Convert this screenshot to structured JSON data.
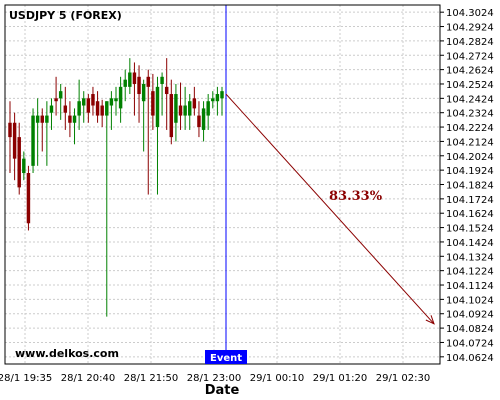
{
  "chart_data": {
    "type": "candlestick",
    "title": "USDJPY 5 (FOREX)",
    "xlabel": "Date",
    "ylabel": "",
    "watermark": "www.delkos.com",
    "ylim": [
      104.0574,
      104.3074
    ],
    "y_ticks": [
      "104.3024",
      "104.2924",
      "104.2824",
      "104.2724",
      "104.2624",
      "104.2524",
      "104.2424",
      "104.2324",
      "104.2224",
      "104.2124",
      "104.2024",
      "104.1924",
      "104.1824",
      "104.1724",
      "104.1624",
      "104.1524",
      "104.1424",
      "104.1324",
      "104.1224",
      "104.1124",
      "104.1024",
      "104.0924",
      "104.0824",
      "104.0724",
      "104.0624"
    ],
    "x_ticks": [
      "28/1 19:35",
      "28/1 20:40",
      "28/1 21:50",
      "28/1 23:00",
      "29/1 00:10",
      "29/1 01:20",
      "29/1 02:30"
    ],
    "grid": true,
    "event": {
      "label": "Event"
    },
    "prediction": {
      "label": "83.33%",
      "from": 104.2454,
      "to": 104.0854
    },
    "colors": {
      "up": "#008000",
      "down": "#8b0000",
      "event": "#0000ff",
      "arrow": "#8b0000",
      "grid": "#cccccc"
    },
    "candles": [
      {
        "o": 104.2254,
        "h": 104.2404,
        "l": 104.1904,
        "c": 104.2154
      },
      {
        "o": 104.2254,
        "h": 104.2324,
        "l": 104.1854,
        "c": 104.2004
      },
      {
        "o": 104.2154,
        "h": 104.2254,
        "l": 104.1754,
        "c": 104.1804
      },
      {
        "o": 104.1904,
        "h": 104.2054,
        "l": 104.1854,
        "c": 104.2004
      },
      {
        "o": 104.1904,
        "h": 104.1954,
        "l": 104.1504,
        "c": 104.1554
      },
      {
        "o": 104.1954,
        "h": 104.2354,
        "l": 104.1904,
        "c": 104.2304
      },
      {
        "o": 104.2254,
        "h": 104.2424,
        "l": 104.1954,
        "c": 104.2304
      },
      {
        "o": 104.2304,
        "h": 104.2354,
        "l": 104.2054,
        "c": 104.2254
      },
      {
        "o": 104.2254,
        "h": 104.2404,
        "l": 104.1954,
        "c": 104.2304
      },
      {
        "o": 104.2324,
        "h": 104.2424,
        "l": 104.2204,
        "c": 104.2374
      },
      {
        "o": 104.2424,
        "h": 104.2574,
        "l": 104.2304,
        "c": 104.2404
      },
      {
        "o": 104.2424,
        "h": 104.2524,
        "l": 104.2274,
        "c": 104.2474
      },
      {
        "o": 104.2374,
        "h": 104.2504,
        "l": 104.2204,
        "c": 104.2324
      },
      {
        "o": 104.2304,
        "h": 104.2404,
        "l": 104.2154,
        "c": 104.2254
      },
      {
        "o": 104.2254,
        "h": 104.2354,
        "l": 104.2104,
        "c": 104.2304
      },
      {
        "o": 104.2304,
        "h": 104.2554,
        "l": 104.2204,
        "c": 104.2404
      },
      {
        "o": 104.2374,
        "h": 104.2474,
        "l": 104.2254,
        "c": 104.2424
      },
      {
        "o": 104.2424,
        "h": 104.2454,
        "l": 104.2254,
        "c": 104.2324
      },
      {
        "o": 104.2454,
        "h": 104.2504,
        "l": 104.2304,
        "c": 104.2374
      },
      {
        "o": 104.2404,
        "h": 104.2474,
        "l": 104.2254,
        "c": 104.2304
      },
      {
        "o": 104.2374,
        "h": 104.2414,
        "l": 104.2224,
        "c": 104.2304
      },
      {
        "o": 104.2304,
        "h": 104.2404,
        "l": 104.0904,
        "c": 104.2404
      },
      {
        "o": 104.2374,
        "h": 104.2474,
        "l": 104.2204,
        "c": 104.2424
      },
      {
        "o": 104.2404,
        "h": 104.2504,
        "l": 104.2304,
        "c": 104.2424
      },
      {
        "o": 104.2354,
        "h": 104.2574,
        "l": 104.2254,
        "c": 104.2504
      },
      {
        "o": 104.2504,
        "h": 104.2624,
        "l": 104.2404,
        "c": 104.2554
      },
      {
        "o": 104.2504,
        "h": 104.2704,
        "l": 104.2454,
        "c": 104.2604
      },
      {
        "o": 104.2604,
        "h": 104.2674,
        "l": 104.2304,
        "c": 104.2524
      },
      {
        "o": 104.2574,
        "h": 104.2654,
        "l": 104.2254,
        "c": 104.2454
      },
      {
        "o": 104.2404,
        "h": 104.2554,
        "l": 104.2054,
        "c": 104.2524
      },
      {
        "o": 104.2574,
        "h": 104.2624,
        "l": 104.1754,
        "c": 104.2504
      },
      {
        "o": 104.2474,
        "h": 104.2594,
        "l": 104.2204,
        "c": 104.2304
      },
      {
        "o": 104.2224,
        "h": 104.2574,
        "l": 104.1754,
        "c": 104.2504
      },
      {
        "o": 104.2524,
        "h": 104.2604,
        "l": 104.2304,
        "c": 104.2574
      },
      {
        "o": 104.2504,
        "h": 104.2704,
        "l": 104.2204,
        "c": 104.2454
      },
      {
        "o": 104.2454,
        "h": 104.2554,
        "l": 104.2104,
        "c": 104.2154
      },
      {
        "o": 104.2254,
        "h": 104.2524,
        "l": 104.2124,
        "c": 104.2454
      },
      {
        "o": 104.2374,
        "h": 104.2534,
        "l": 104.2204,
        "c": 104.2304
      },
      {
        "o": 104.2304,
        "h": 104.2504,
        "l": 104.2204,
        "c": 104.2374
      },
      {
        "o": 104.2304,
        "h": 104.2454,
        "l": 104.2204,
        "c": 104.2404
      },
      {
        "o": 104.2424,
        "h": 104.2504,
        "l": 104.2304,
        "c": 104.2354
      },
      {
        "o": 104.2304,
        "h": 104.2404,
        "l": 104.2154,
        "c": 104.2224
      },
      {
        "o": 104.2204,
        "h": 104.2404,
        "l": 104.2124,
        "c": 104.2354
      },
      {
        "o": 104.2304,
        "h": 104.2454,
        "l": 104.2204,
        "c": 104.2404
      },
      {
        "o": 104.2404,
        "h": 104.2474,
        "l": 104.2354,
        "c": 104.2424
      },
      {
        "o": 104.2404,
        "h": 104.2504,
        "l": 104.2304,
        "c": 104.2454
      },
      {
        "o": 104.2424,
        "h": 104.2504,
        "l": 104.2304,
        "c": 104.2474
      }
    ]
  }
}
